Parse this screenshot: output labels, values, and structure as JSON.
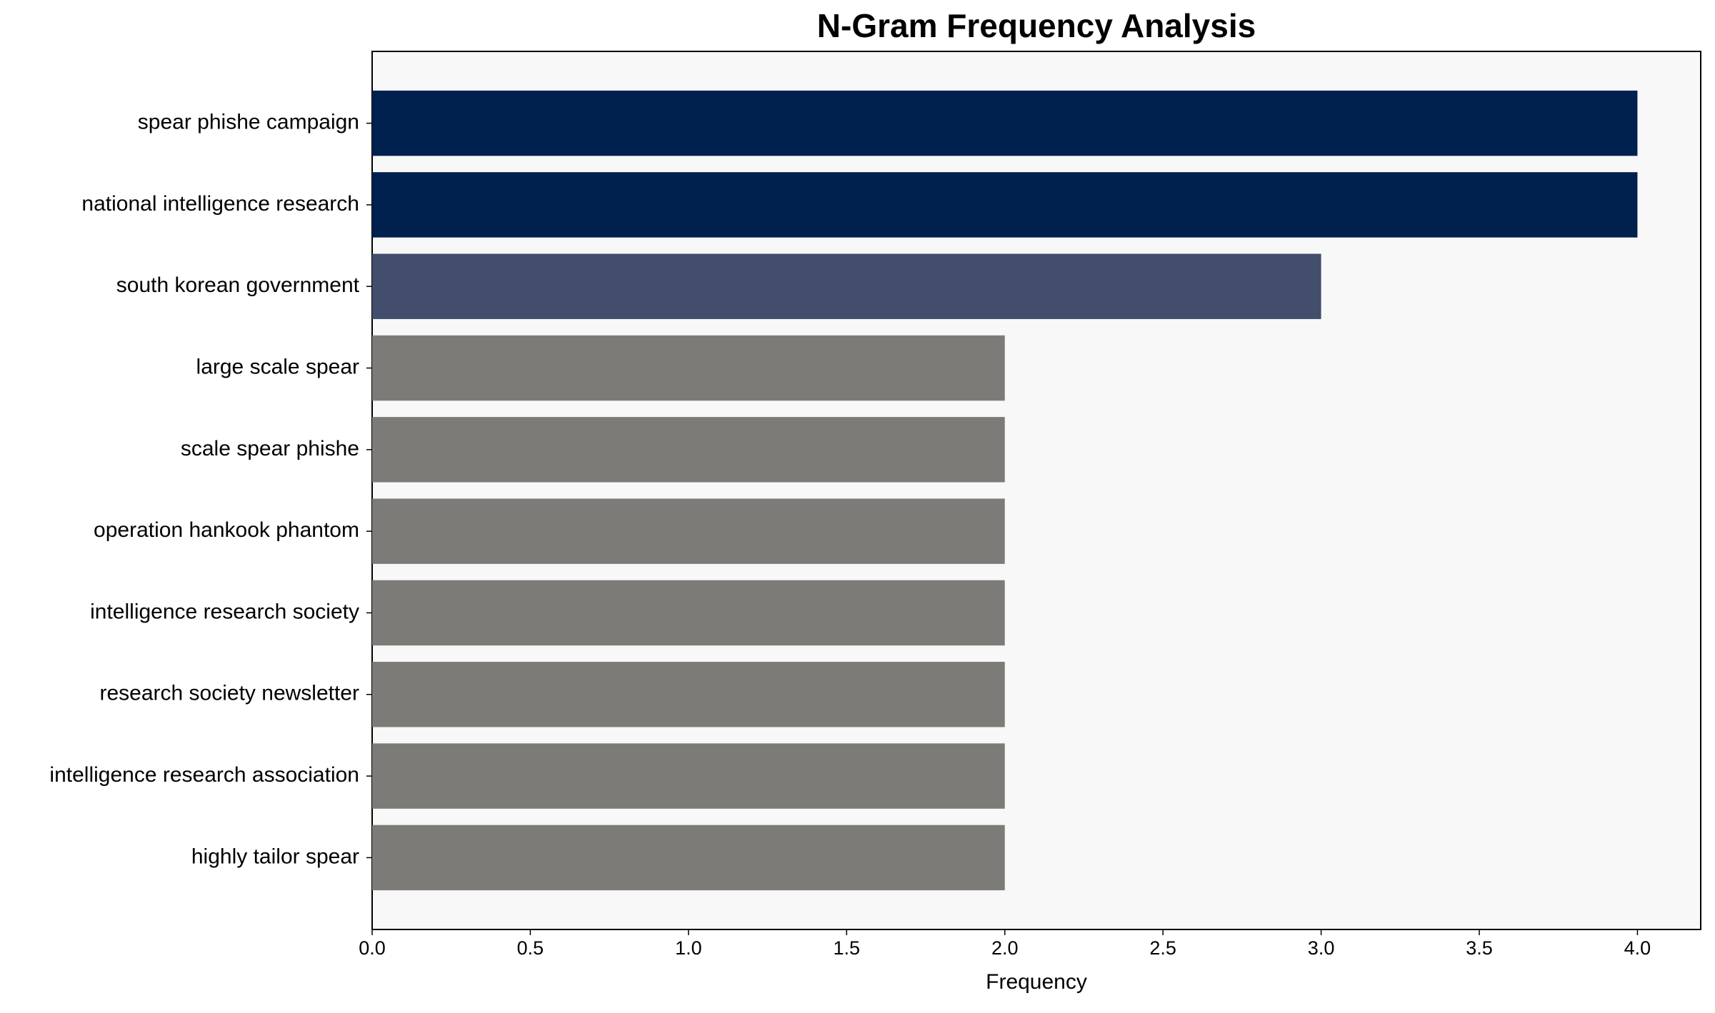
{
  "chart_data": {
    "type": "barh",
    "title": "N-Gram Frequency Analysis",
    "xlabel": "Frequency",
    "categories": [
      "spear phishe campaign",
      "national intelligence research",
      "south korean government",
      "large scale spear",
      "scale spear phishe",
      "operation hankook phantom",
      "intelligence research society",
      "research society newsletter",
      "intelligence research association",
      "highly tailor spear"
    ],
    "values": [
      4,
      4,
      3,
      2,
      2,
      2,
      2,
      2,
      2,
      2
    ],
    "colors": [
      "#00204e",
      "#00204e",
      "#434e6c",
      "#7c7b78",
      "#7c7b78",
      "#7c7b78",
      "#7c7b78",
      "#7c7b78",
      "#7c7b78",
      "#7c7b78"
    ],
    "xlim": [
      0,
      4.2
    ],
    "xticks": [
      {
        "value": 0,
        "label": "0.0"
      },
      {
        "value": 0.5,
        "label": "0.5"
      },
      {
        "value": 1,
        "label": "1.0"
      },
      {
        "value": 1.5,
        "label": "1.5"
      },
      {
        "value": 2,
        "label": "2.0"
      },
      {
        "value": 2.5,
        "label": "2.5"
      },
      {
        "value": 3,
        "label": "3.0"
      },
      {
        "value": 3.5,
        "label": "3.5"
      },
      {
        "value": 4,
        "label": "4.0"
      }
    ],
    "background": "#f8f8f8"
  }
}
